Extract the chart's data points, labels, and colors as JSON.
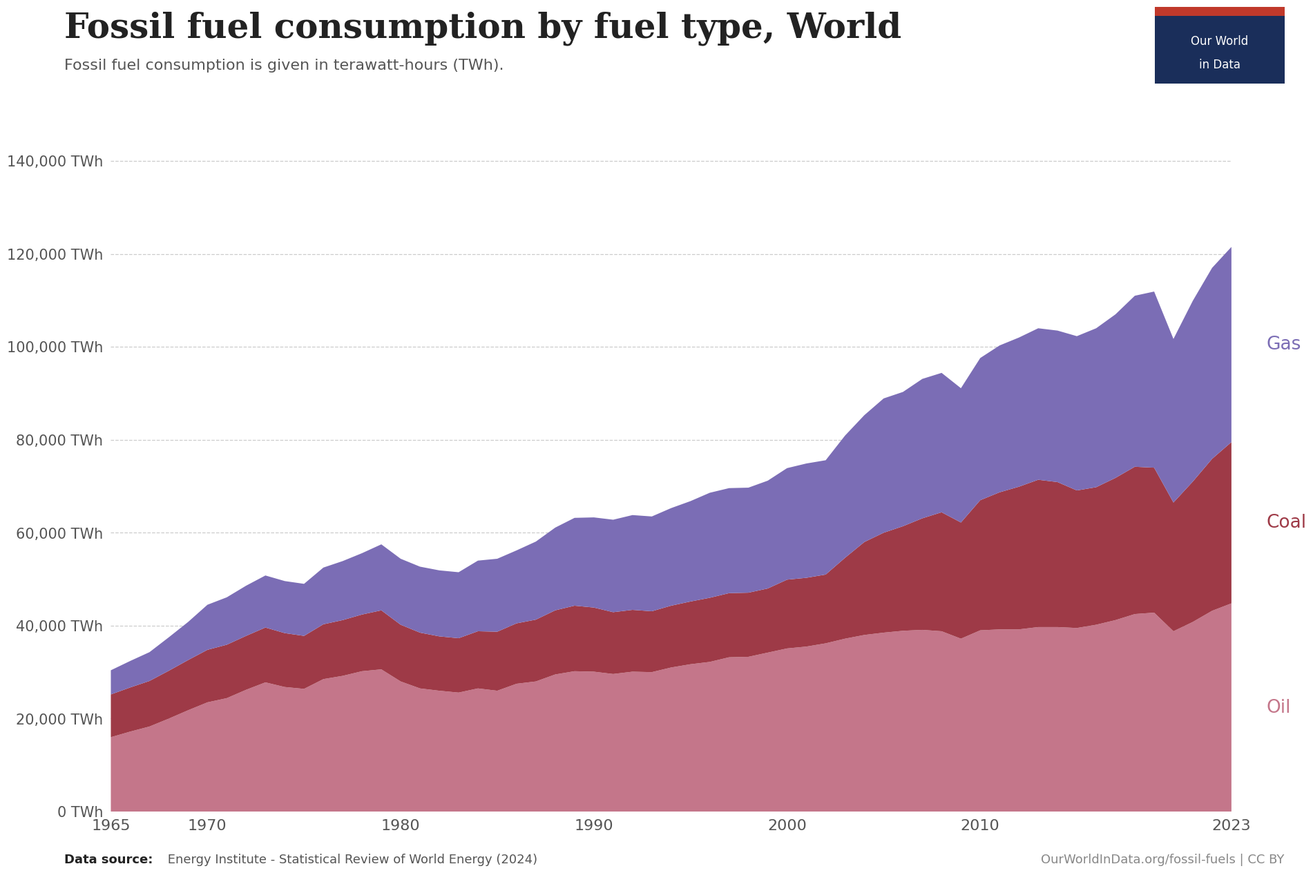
{
  "title": "Fossil fuel consumption by fuel type, World",
  "subtitle": "Fossil fuel consumption is given in terawatt-hours (TWh).",
  "source_bold": "Data source:",
  "source_normal": " Energy Institute - Statistical Review of World Energy (2024)",
  "source_right": "OurWorldInData.org/fossil-fuels | CC BY",
  "background_color": "#ffffff",
  "plot_bg_color": "#ffffff",
  "oil_color": "#c4768a",
  "coal_color": "#9e3a47",
  "gas_color": "#7b6db5",
  "label_oil_color": "#c4768a",
  "label_coal_color": "#9e3a47",
  "label_gas_color": "#7b6db5",
  "years": [
    1965,
    1966,
    1967,
    1968,
    1969,
    1970,
    1971,
    1972,
    1973,
    1974,
    1975,
    1976,
    1977,
    1978,
    1979,
    1980,
    1981,
    1982,
    1983,
    1984,
    1985,
    1986,
    1987,
    1988,
    1989,
    1990,
    1991,
    1992,
    1993,
    1994,
    1995,
    1996,
    1997,
    1998,
    1999,
    2000,
    2001,
    2002,
    2003,
    2004,
    2005,
    2006,
    2007,
    2008,
    2009,
    2010,
    2011,
    2012,
    2013,
    2014,
    2015,
    2016,
    2017,
    2018,
    2019,
    2020,
    2021,
    2022,
    2023
  ],
  "oil": [
    16000,
    17200,
    18300,
    20000,
    21800,
    23500,
    24400,
    26200,
    27800,
    26800,
    26400,
    28500,
    29200,
    30200,
    30600,
    28000,
    26500,
    26000,
    25600,
    26500,
    26000,
    27500,
    28000,
    29500,
    30200,
    30100,
    29600,
    30100,
    30000,
    31000,
    31700,
    32200,
    33200,
    33300,
    34200,
    35100,
    35500,
    36200,
    37200,
    38000,
    38500,
    38900,
    39100,
    38800,
    37200,
    39000,
    39200,
    39200,
    39700,
    39700,
    39500,
    40200,
    41200,
    42500,
    42800,
    38800,
    40800,
    43200,
    44800
  ],
  "coal": [
    9200,
    9500,
    9800,
    10300,
    10800,
    11300,
    11500,
    11600,
    11800,
    11600,
    11400,
    11800,
    12000,
    12200,
    12700,
    12200,
    12000,
    11700,
    11700,
    12300,
    12700,
    13000,
    13300,
    13800,
    14100,
    13800,
    13300,
    13300,
    13100,
    13300,
    13500,
    13800,
    13800,
    13800,
    13800,
    14800,
    14800,
    14800,
    17400,
    20000,
    21500,
    22500,
    24000,
    25600,
    25000,
    28000,
    29500,
    30700,
    31700,
    31200,
    29600,
    29600,
    30600,
    31700,
    31200,
    27700,
    30200,
    32700,
    34700
  ],
  "gas": [
    5200,
    5700,
    6200,
    7200,
    8200,
    9700,
    10200,
    10800,
    11200,
    11200,
    11200,
    12200,
    12700,
    13200,
    14200,
    14200,
    14200,
    14200,
    14200,
    15200,
    15700,
    15700,
    16800,
    17800,
    18900,
    19400,
    19900,
    20400,
    20400,
    21000,
    21600,
    22600,
    22600,
    22600,
    23200,
    24000,
    24600,
    24600,
    26300,
    27300,
    28900,
    28900,
    30000,
    30000,
    28900,
    30600,
    31600,
    32100,
    32600,
    32600,
    33200,
    34200,
    35200,
    36800,
    37900,
    35200,
    38900,
    41100,
    42000
  ],
  "ylim": [
    0,
    145000
  ],
  "yticks": [
    0,
    20000,
    40000,
    60000,
    80000,
    100000,
    120000,
    140000
  ],
  "ytick_labels": [
    "0 TWh",
    "20,000 TWh",
    "40,000 TWh",
    "60,000 TWh",
    "80,000 TWh",
    "100,000 TWh",
    "120,000 TWh",
    "140,000 TWh"
  ],
  "xticks": [
    1965,
    1970,
    1980,
    1990,
    2000,
    2010,
    2023
  ],
  "logo_bg": "#1a2e5a",
  "logo_bar": "#c0392b"
}
